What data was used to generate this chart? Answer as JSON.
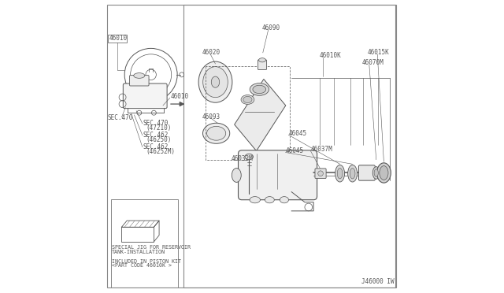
{
  "bg_color": "#ffffff",
  "border_color": "#888888",
  "line_color": "#555555",
  "text_color": "#555555",
  "diagram_id": "J46000 IW",
  "special_jig_text1": "SPECIAL JIG FOR RESERVOIR",
  "special_jig_text2": "TANK-INSTALLATION",
  "piston_kit_text1": "INCLUDED IN PISTON KIT",
  "piston_kit_text2": "<PART CODE 46010K >",
  "font_size_label": 6.5,
  "font_size_small": 5.5
}
